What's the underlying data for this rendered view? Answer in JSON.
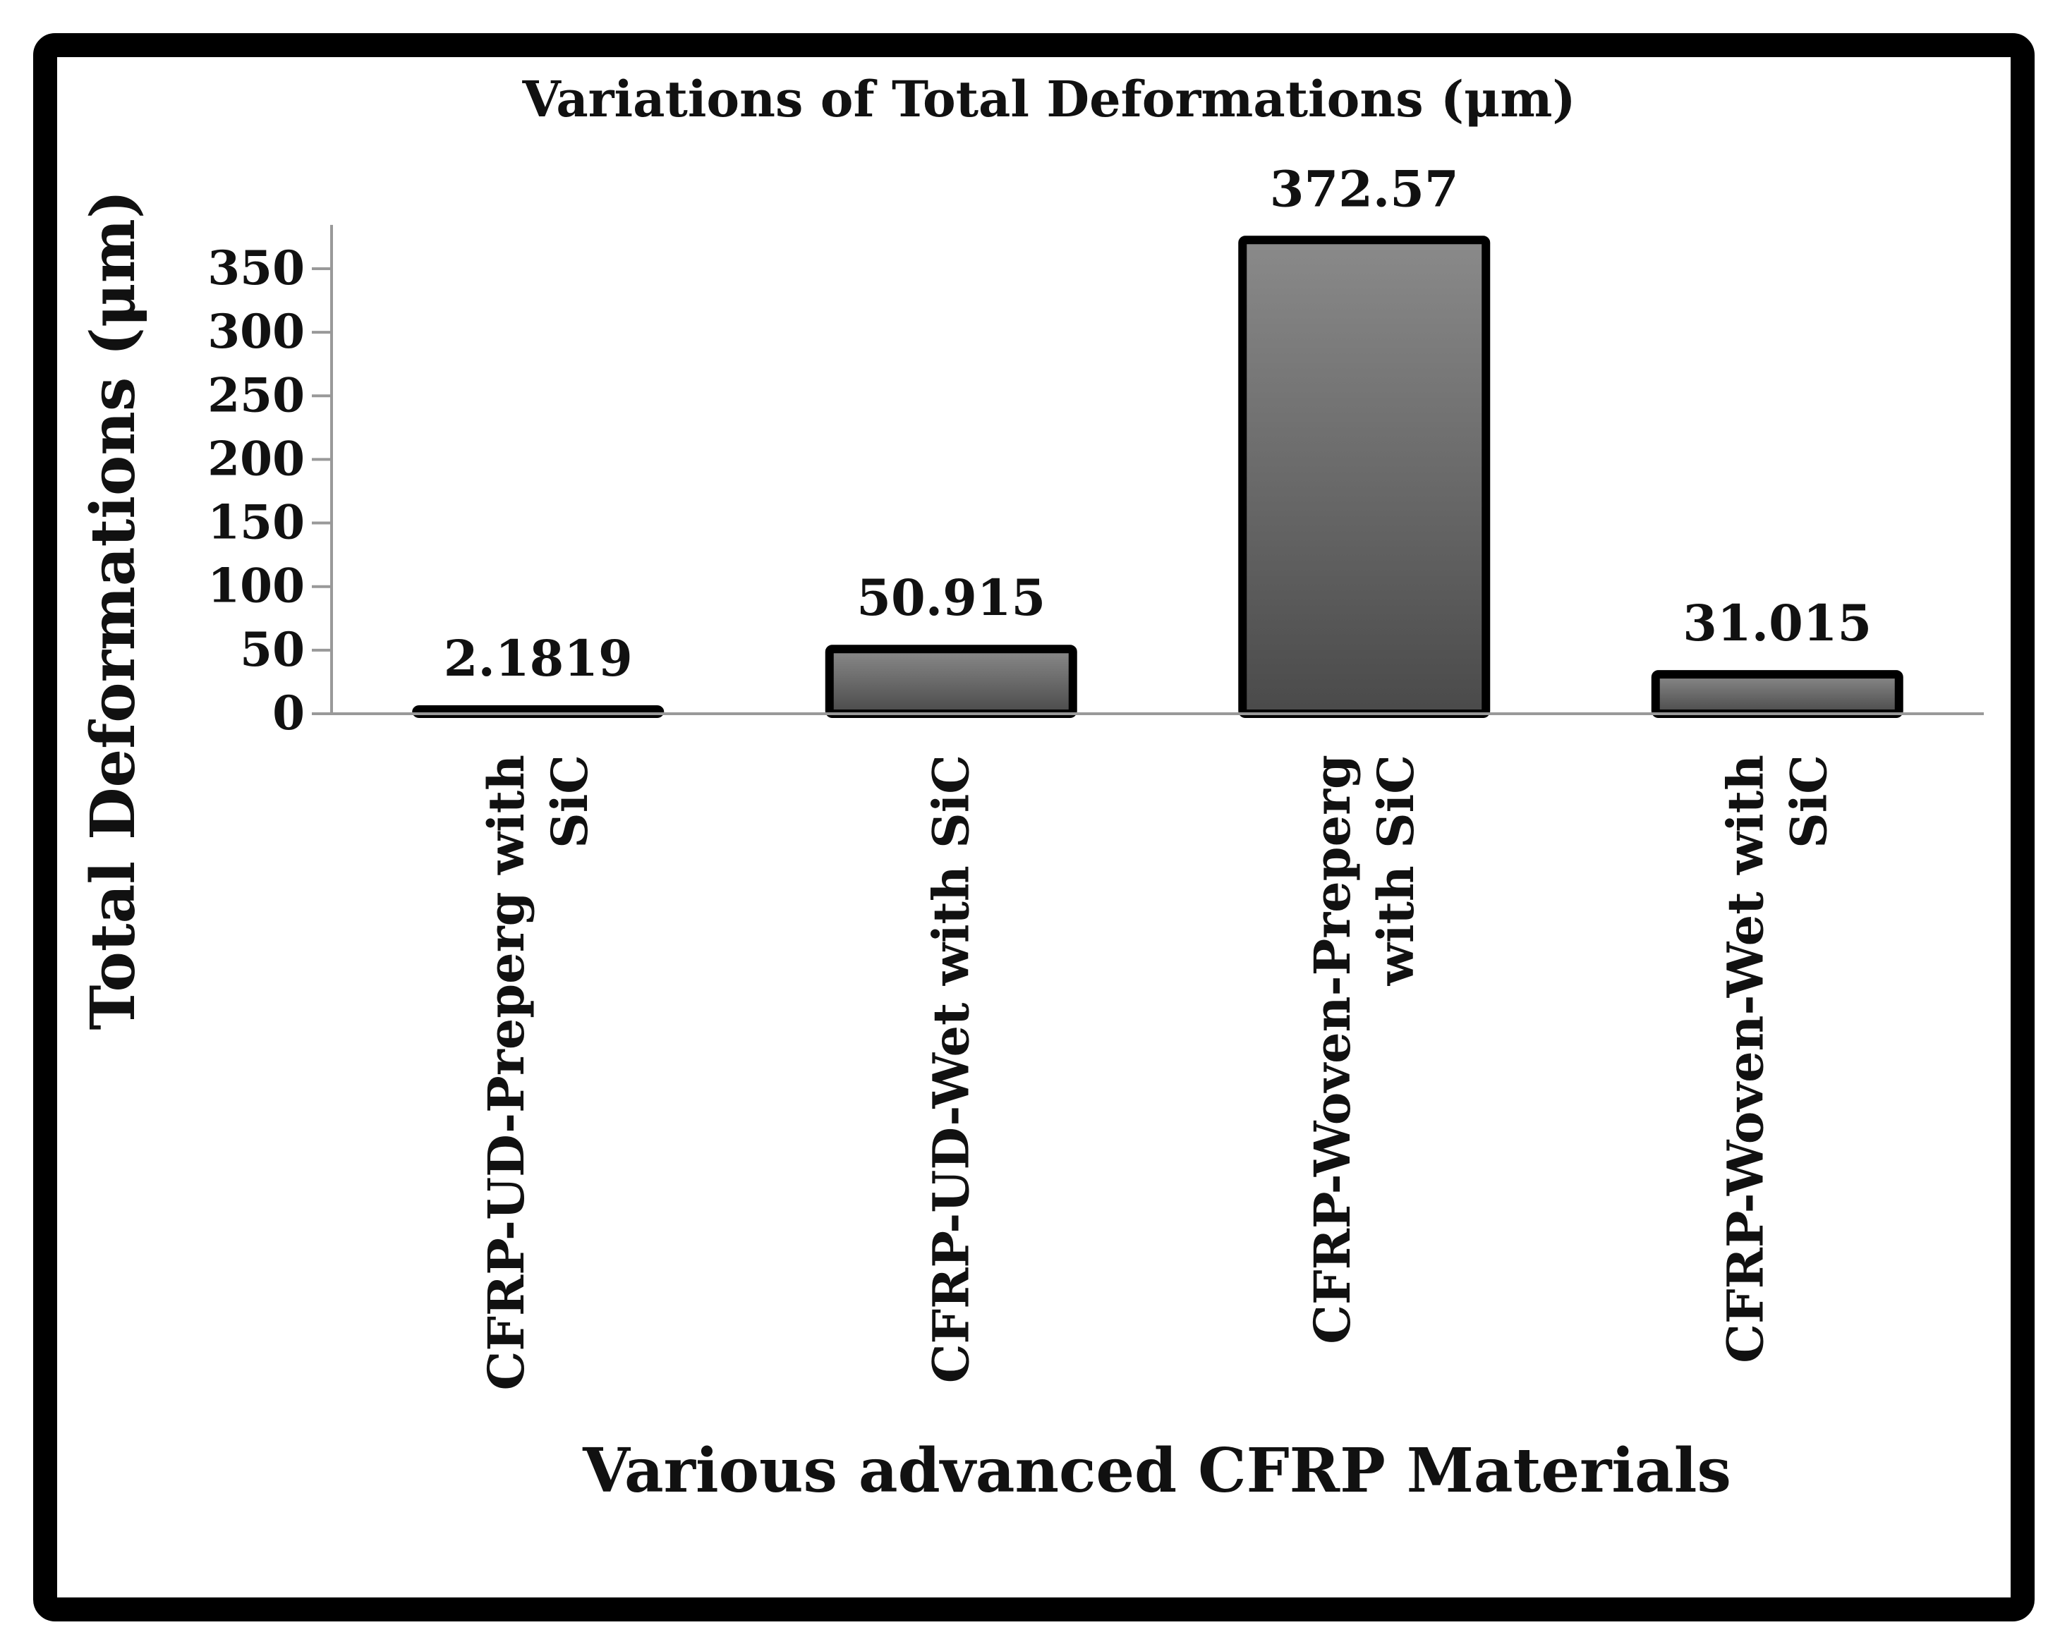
{
  "chart_data": {
    "type": "bar",
    "title": "Variations of Total Deformations (μm)",
    "xlabel": "Various advanced CFRP Materials",
    "ylabel": "Total Deformations (μm)",
    "ylim": [
      0,
      380
    ],
    "yticks": [
      0,
      50,
      100,
      150,
      200,
      250,
      300,
      350
    ],
    "categories": [
      [
        "CFRP-UD-Preperg with",
        "SiC"
      ],
      [
        "CFRP-UD-Wet with SiC"
      ],
      [
        "CFRP-Woven-Preperg",
        "with SiC"
      ],
      [
        "CFRP-Woven-Wet with",
        "SiC"
      ]
    ],
    "values": [
      2.1819,
      50.915,
      372.57,
      31.015
    ],
    "value_labels": [
      "2.1819",
      "50.915",
      "372.57",
      "31.015"
    ],
    "grid": false,
    "legend": "none"
  },
  "colors": {
    "frame": "#000000",
    "bar_outline": "#000000",
    "bar_fill_light": "#8a8a8a",
    "bar_fill_dark": "#4a4a4a",
    "axis": "#999999"
  }
}
